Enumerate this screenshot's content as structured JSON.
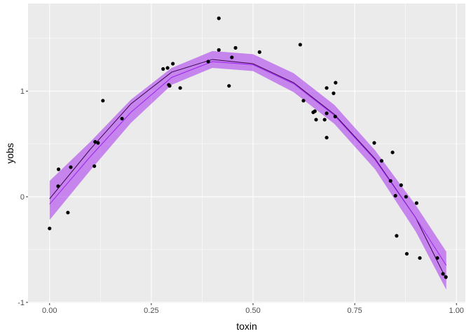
{
  "chart_data": {
    "type": "scatter",
    "title": "",
    "xlabel": "toxin",
    "ylabel": "yobs",
    "xlim": [
      -0.053,
      1.022
    ],
    "ylim": [
      -1.007,
      1.83
    ],
    "x_ticks": [
      "0.00",
      "0.25",
      "0.50",
      "0.75",
      "1.00"
    ],
    "x_tick_values": [
      0,
      0.25,
      0.5,
      0.75,
      1.0
    ],
    "y_ticks": [
      "-1",
      "0",
      "1"
    ],
    "y_tick_values": [
      -1,
      0,
      1
    ],
    "grid": true,
    "colors": {
      "panel": "#ebebeb",
      "grid": "#ffffff",
      "ribbon": "#a020f0",
      "fit_line": "#a020f0",
      "true_line": "#3a0050",
      "points": "#000000"
    },
    "points": {
      "x": [
        0,
        0.022,
        0.021,
        0.045,
        0.052,
        0.11,
        0.112,
        0.119,
        0.131,
        0.178,
        0.279,
        0.29,
        0.293,
        0.295,
        0.303,
        0.321,
        0.39,
        0.416,
        0.416,
        0.441,
        0.448,
        0.457,
        0.516,
        0.616,
        0.624,
        0.648,
        0.652,
        0.655,
        0.676,
        0.681,
        0.681,
        0.681,
        0.698,
        0.702,
        0.703,
        0.798,
        0.816,
        0.838,
        0.843,
        0.85,
        0.853,
        0.864,
        0.876,
        0.878,
        0.91,
        0.902,
        0.953,
        0.967,
        0.974
      ],
      "y": [
        -0.3,
        0.26,
        0.1,
        -0.15,
        0.28,
        0.29,
        0.52,
        0.51,
        0.91,
        0.74,
        1.21,
        1.22,
        1.06,
        1.05,
        1.26,
        1.03,
        1.28,
        1.69,
        1.39,
        1.05,
        1.32,
        1.41,
        1.37,
        1.44,
        0.91,
        0.8,
        0.81,
        0.73,
        0.73,
        1.03,
        0.79,
        0.56,
        0.98,
        0.76,
        1.08,
        0.51,
        0.34,
        0.15,
        0.42,
        0.01,
        -0.37,
        0.11,
        0.0,
        -0.54,
        -0.58,
        -0.06,
        -0.58,
        -0.73,
        -0.76
      ]
    },
    "curve_x": [
      0,
      0.1,
      0.2,
      0.3,
      0.4,
      0.5,
      0.6,
      0.7,
      0.8,
      0.9,
      0.975
    ],
    "true_curve": [
      -0.02,
      0.45,
      0.88,
      1.18,
      1.3,
      1.26,
      1.08,
      0.78,
      0.36,
      -0.2,
      -0.78
    ],
    "fit_curve": [
      -0.07,
      0.38,
      0.8,
      1.13,
      1.28,
      1.25,
      1.07,
      0.77,
      0.35,
      -0.2,
      -0.65
    ],
    "ribbon_lower": [
      -0.22,
      0.25,
      0.7,
      1.06,
      1.22,
      1.19,
      0.99,
      0.69,
      0.26,
      -0.33,
      -0.88
    ],
    "ribbon_upper": [
      0.15,
      0.52,
      0.92,
      1.22,
      1.38,
      1.35,
      1.17,
      0.87,
      0.44,
      -0.08,
      -0.52
    ]
  }
}
